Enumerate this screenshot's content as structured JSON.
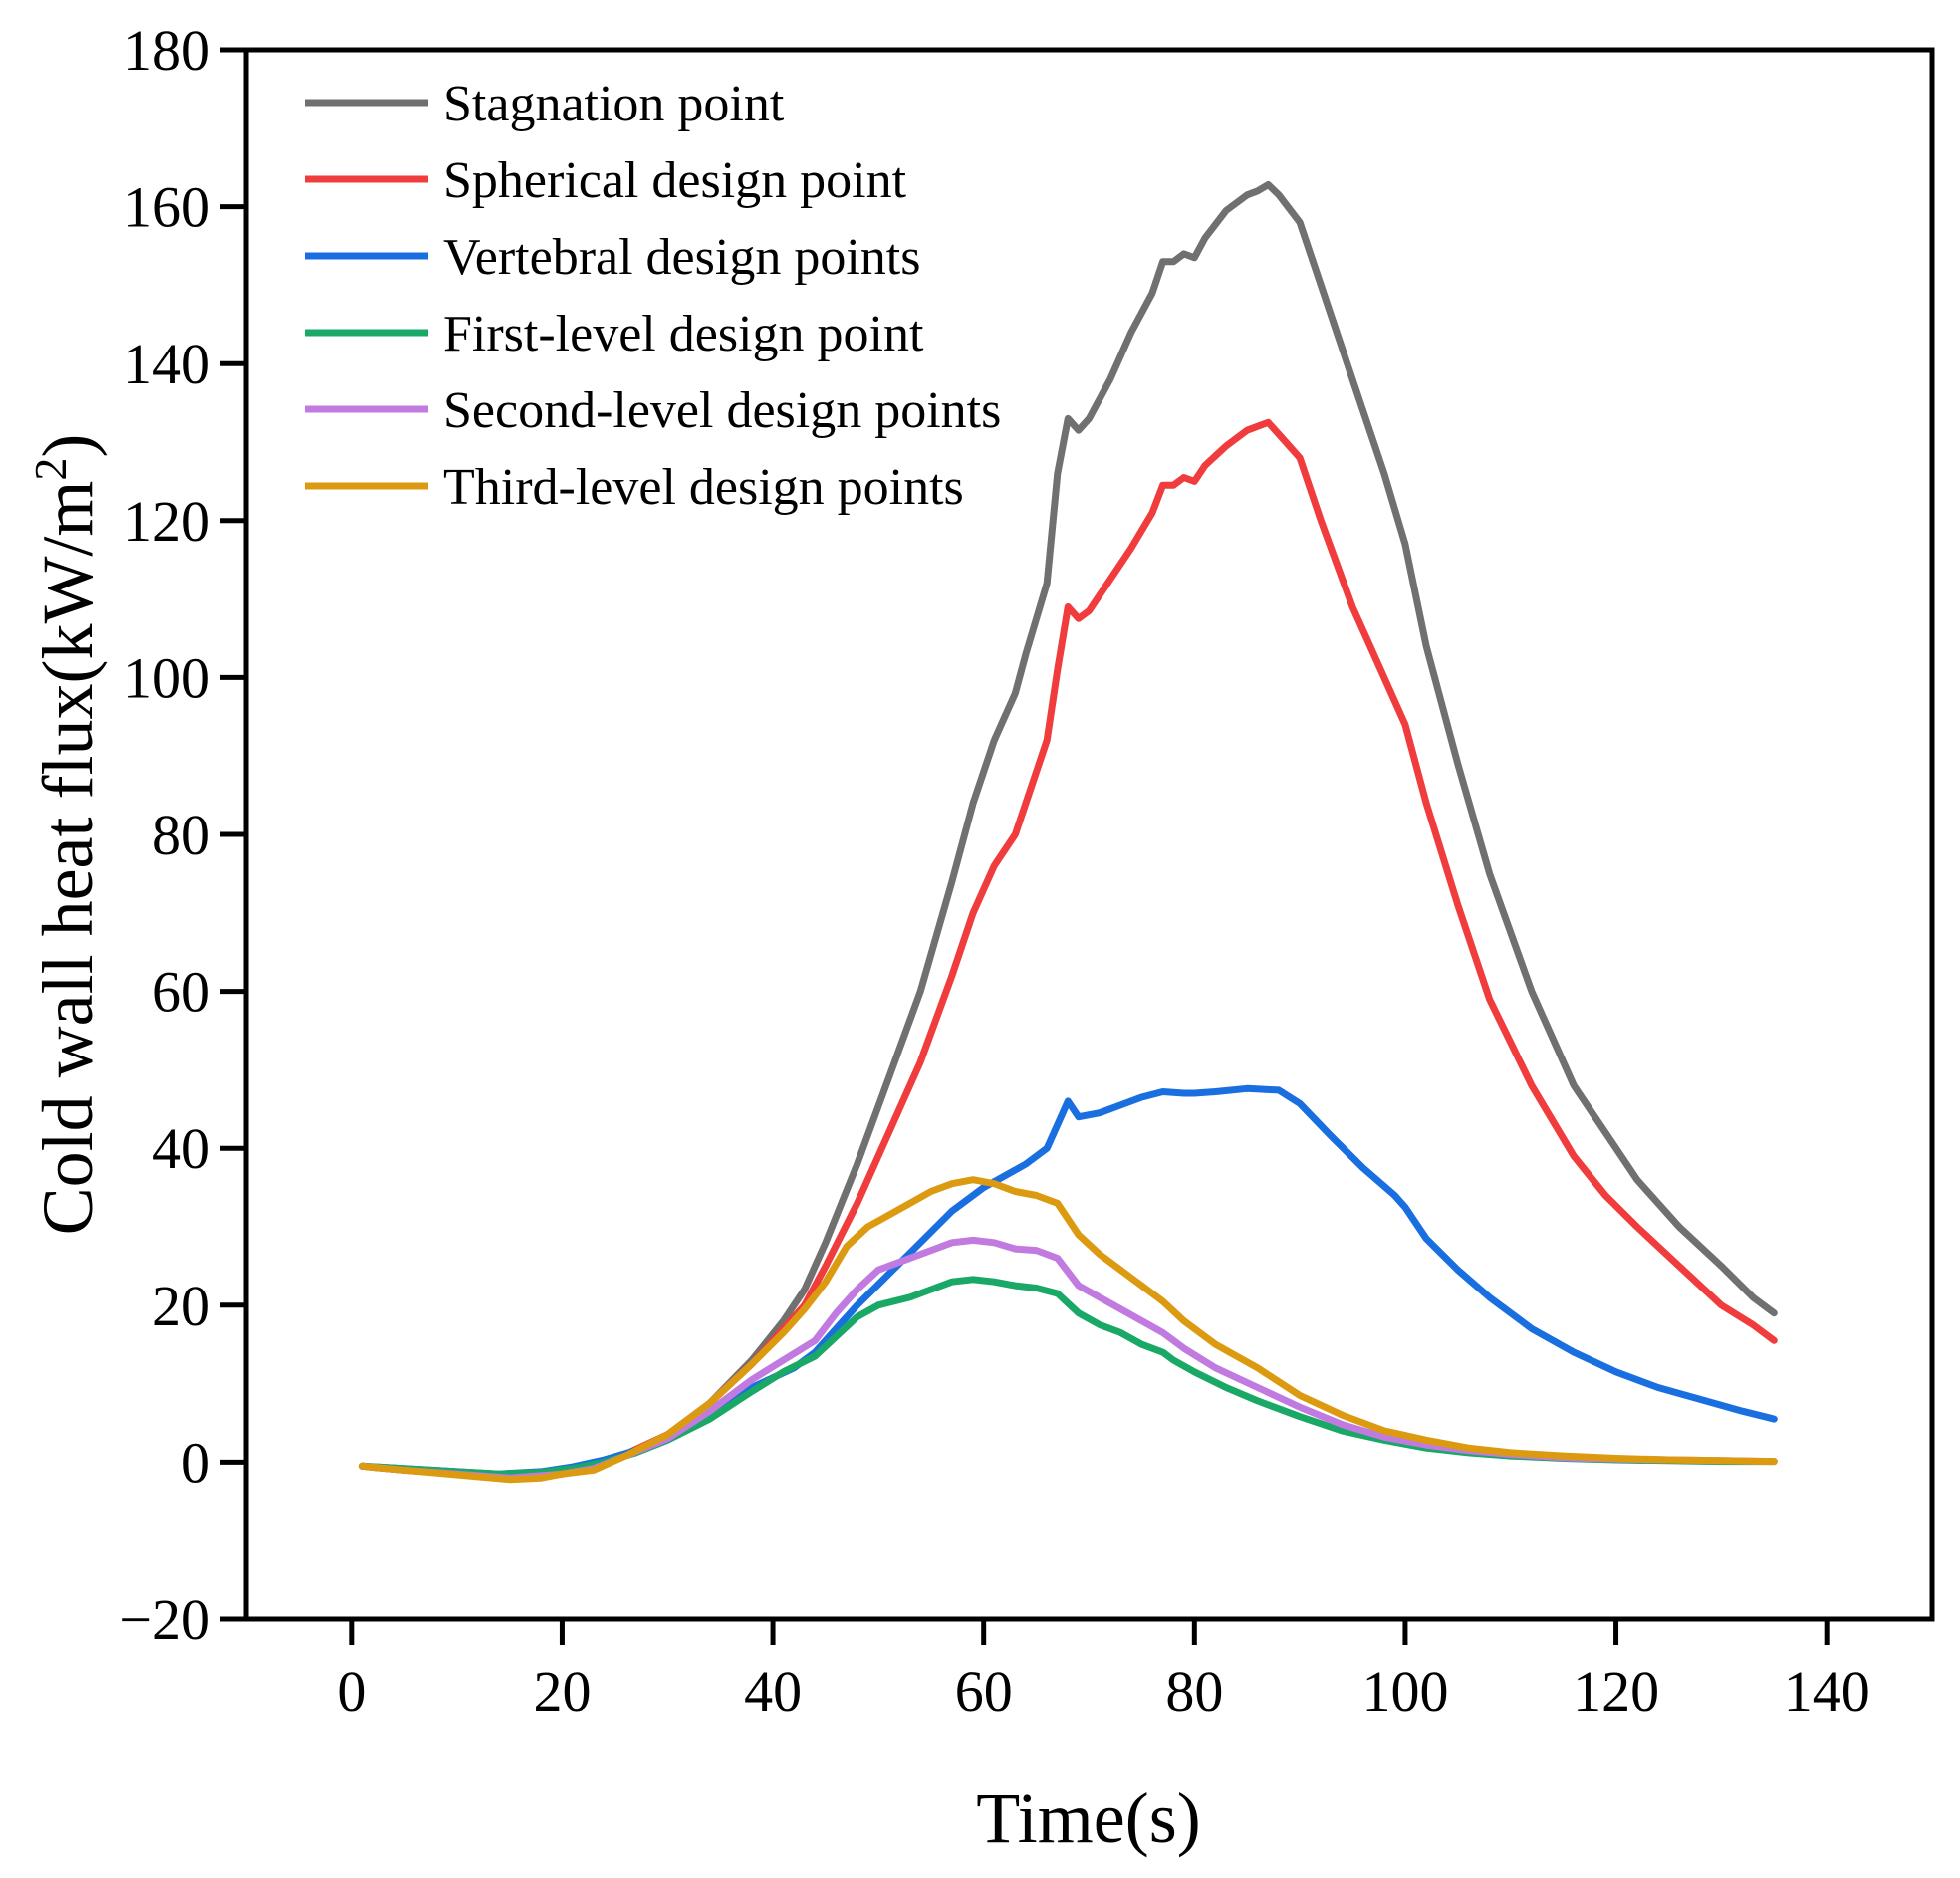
{
  "chart_data": {
    "type": "line",
    "title": "",
    "xlabel": "Time(s)",
    "ylabel": "Cold wall heat flux(kW/m",
    "ylabel_superscript": "2",
    "ylabel_close": ")",
    "xlim": [
      -10,
      150
    ],
    "ylim": [
      -20,
      180
    ],
    "xticks": [
      0,
      20,
      40,
      60,
      80,
      100,
      120,
      140
    ],
    "yticks": [
      -20,
      0,
      20,
      40,
      60,
      80,
      100,
      120,
      140,
      160,
      180
    ],
    "xtick_labels": [
      "0",
      "20",
      "40",
      "60",
      "80",
      "100",
      "120",
      "140"
    ],
    "ytick_labels": [
      "−20",
      "0",
      "20",
      "40",
      "60",
      "80",
      "100",
      "120",
      "140",
      "160",
      "180"
    ],
    "grid": false,
    "legend_position": "top-left",
    "series": [
      {
        "name": "Stagnation point",
        "color": "#707070",
        "points": [
          [
            1,
            -0.5
          ],
          [
            5,
            -1
          ],
          [
            10,
            -1.5
          ],
          [
            15,
            -2
          ],
          [
            20,
            -1.5
          ],
          [
            23,
            -0.5
          ],
          [
            26,
            1
          ],
          [
            30,
            3.5
          ],
          [
            34,
            7.5
          ],
          [
            38,
            13
          ],
          [
            41,
            18
          ],
          [
            43,
            22
          ],
          [
            45,
            28
          ],
          [
            48,
            38
          ],
          [
            51,
            49
          ],
          [
            54,
            60
          ],
          [
            57,
            74
          ],
          [
            59,
            84
          ],
          [
            61,
            92
          ],
          [
            63,
            98
          ],
          [
            64,
            103
          ],
          [
            66,
            112
          ],
          [
            67,
            126
          ],
          [
            68,
            133
          ],
          [
            69,
            131.5
          ],
          [
            70,
            133
          ],
          [
            72,
            138
          ],
          [
            74,
            144
          ],
          [
            76,
            149
          ],
          [
            77,
            153
          ],
          [
            78,
            153
          ],
          [
            79,
            154
          ],
          [
            80,
            153.5
          ],
          [
            81,
            156
          ],
          [
            83,
            159.5
          ],
          [
            85,
            161.5
          ],
          [
            86,
            162
          ],
          [
            87,
            162.8
          ],
          [
            88,
            161.5
          ],
          [
            90,
            158
          ],
          [
            92,
            150
          ],
          [
            95,
            138
          ],
          [
            98,
            126
          ],
          [
            100,
            117
          ],
          [
            102,
            104
          ],
          [
            105,
            89
          ],
          [
            108,
            75
          ],
          [
            112,
            60
          ],
          [
            116,
            48
          ],
          [
            119,
            42
          ],
          [
            122,
            36
          ],
          [
            126,
            30
          ],
          [
            130,
            25
          ],
          [
            133,
            21
          ],
          [
            135,
            19
          ]
        ]
      },
      {
        "name": "Spherical design point",
        "color": "#f03c3c",
        "points": [
          [
            1,
            -0.5
          ],
          [
            5,
            -1
          ],
          [
            10,
            -1.5
          ],
          [
            15,
            -2
          ],
          [
            20,
            -1.5
          ],
          [
            23,
            -0.5
          ],
          [
            26,
            1
          ],
          [
            30,
            3.5
          ],
          [
            34,
            7.5
          ],
          [
            38,
            12.5
          ],
          [
            41,
            17
          ],
          [
            43,
            20
          ],
          [
            45,
            25
          ],
          [
            48,
            33
          ],
          [
            51,
            42
          ],
          [
            54,
            51
          ],
          [
            57,
            62
          ],
          [
            59,
            70
          ],
          [
            61,
            76
          ],
          [
            63,
            80
          ],
          [
            64,
            84
          ],
          [
            66,
            92
          ],
          [
            67,
            101
          ],
          [
            68,
            109
          ],
          [
            69,
            107.5
          ],
          [
            70,
            108.5
          ],
          [
            72,
            112.5
          ],
          [
            74,
            116.5
          ],
          [
            76,
            121
          ],
          [
            77,
            124.5
          ],
          [
            78,
            124.5
          ],
          [
            79,
            125.5
          ],
          [
            80,
            125
          ],
          [
            81,
            127
          ],
          [
            83,
            129.5
          ],
          [
            85,
            131.5
          ],
          [
            86,
            132
          ],
          [
            87,
            132.5
          ],
          [
            88,
            131
          ],
          [
            90,
            128
          ],
          [
            92,
            120
          ],
          [
            95,
            109
          ],
          [
            98,
            100
          ],
          [
            100,
            94
          ],
          [
            102,
            84
          ],
          [
            105,
            71
          ],
          [
            108,
            59
          ],
          [
            112,
            48
          ],
          [
            116,
            39
          ],
          [
            119,
            34
          ],
          [
            122,
            30
          ],
          [
            126,
            25
          ],
          [
            130,
            20
          ],
          [
            133,
            17.5
          ],
          [
            135,
            15.5
          ]
        ]
      },
      {
        "name": "Vertebral design points",
        "color": "#1a6fe0",
        "points": [
          [
            1,
            -0.5
          ],
          [
            5,
            -0.8
          ],
          [
            10,
            -1.2
          ],
          [
            14,
            -1.5
          ],
          [
            18,
            -1.2
          ],
          [
            21,
            -0.6
          ],
          [
            24,
            0.3
          ],
          [
            27,
            1.5
          ],
          [
            30,
            3
          ],
          [
            34,
            6
          ],
          [
            38,
            9.5
          ],
          [
            42,
            12
          ],
          [
            44,
            14
          ],
          [
            46,
            17
          ],
          [
            48,
            20
          ],
          [
            51,
            24
          ],
          [
            54,
            28
          ],
          [
            57,
            32
          ],
          [
            60,
            35
          ],
          [
            62,
            36.5
          ],
          [
            64,
            38
          ],
          [
            66,
            40
          ],
          [
            67,
            43
          ],
          [
            68,
            46
          ],
          [
            69,
            44
          ],
          [
            71,
            44.5
          ],
          [
            73,
            45.5
          ],
          [
            75,
            46.5
          ],
          [
            77,
            47.2
          ],
          [
            79,
            47
          ],
          [
            80,
            47
          ],
          [
            82,
            47.2
          ],
          [
            85,
            47.6
          ],
          [
            88,
            47.4
          ],
          [
            90,
            45.7
          ],
          [
            93,
            41.5
          ],
          [
            96,
            37.5
          ],
          [
            99,
            34
          ],
          [
            100,
            32.5
          ],
          [
            102,
            28.5
          ],
          [
            105,
            24.5
          ],
          [
            108,
            21
          ],
          [
            112,
            17
          ],
          [
            116,
            14
          ],
          [
            120,
            11.5
          ],
          [
            124,
            9.5
          ],
          [
            128,
            8
          ],
          [
            132,
            6.5
          ],
          [
            135,
            5.5
          ]
        ]
      },
      {
        "name": "First-level design point",
        "color": "#1aa866",
        "points": [
          [
            1,
            -0.5
          ],
          [
            5,
            -0.8
          ],
          [
            10,
            -1.2
          ],
          [
            14,
            -1.5
          ],
          [
            18,
            -1.3
          ],
          [
            21,
            -0.8
          ],
          [
            24,
            0
          ],
          [
            27,
            1.2
          ],
          [
            30,
            2.8
          ],
          [
            34,
            5.5
          ],
          [
            38,
            9
          ],
          [
            41,
            11.5
          ],
          [
            44,
            13.5
          ],
          [
            46,
            16
          ],
          [
            48,
            18.5
          ],
          [
            50,
            20
          ],
          [
            53,
            21
          ],
          [
            55,
            22
          ],
          [
            57,
            23
          ],
          [
            59,
            23.3
          ],
          [
            61,
            23
          ],
          [
            63,
            22.5
          ],
          [
            65,
            22.2
          ],
          [
            67,
            21.5
          ],
          [
            69,
            19
          ],
          [
            71,
            17.5
          ],
          [
            73,
            16.5
          ],
          [
            75,
            15
          ],
          [
            77,
            14
          ],
          [
            78,
            13
          ],
          [
            80,
            11.5
          ],
          [
            83,
            9.5
          ],
          [
            86,
            7.8
          ],
          [
            90,
            5.8
          ],
          [
            94,
            4
          ],
          [
            98,
            2.8
          ],
          [
            102,
            1.8
          ],
          [
            106,
            1.2
          ],
          [
            110,
            0.8
          ],
          [
            115,
            0.5
          ],
          [
            120,
            0.3
          ],
          [
            125,
            0.2
          ],
          [
            130,
            0.1
          ],
          [
            135,
            0.1
          ]
        ]
      },
      {
        "name": "Second-level design points",
        "color": "#c07ae0",
        "points": [
          [
            1,
            -0.5
          ],
          [
            5,
            -1
          ],
          [
            10,
            -1.5
          ],
          [
            15,
            -2
          ],
          [
            20,
            -1.5
          ],
          [
            23,
            -0.8
          ],
          [
            26,
            0.8
          ],
          [
            30,
            3
          ],
          [
            34,
            6.5
          ],
          [
            38,
            10.5
          ],
          [
            41,
            13
          ],
          [
            44,
            15.5
          ],
          [
            46,
            19
          ],
          [
            48,
            22
          ],
          [
            50,
            24.5
          ],
          [
            53,
            26
          ],
          [
            55,
            27
          ],
          [
            57,
            28
          ],
          [
            59,
            28.3
          ],
          [
            61,
            28
          ],
          [
            63,
            27.2
          ],
          [
            65,
            27
          ],
          [
            67,
            26
          ],
          [
            69,
            22.5
          ],
          [
            71,
            21
          ],
          [
            73,
            19.5
          ],
          [
            75,
            18
          ],
          [
            77,
            16.5
          ],
          [
            79,
            14.5
          ],
          [
            82,
            12
          ],
          [
            86,
            9.5
          ],
          [
            90,
            7
          ],
          [
            94,
            4.8
          ],
          [
            98,
            3.2
          ],
          [
            102,
            2.2
          ],
          [
            106,
            1.5
          ],
          [
            110,
            1
          ],
          [
            115,
            0.6
          ],
          [
            120,
            0.4
          ],
          [
            125,
            0.3
          ],
          [
            130,
            0.2
          ],
          [
            135,
            0.1
          ]
        ]
      },
      {
        "name": "Third-level design points",
        "color": "#dc9a10",
        "points": [
          [
            1,
            -0.5
          ],
          [
            5,
            -1
          ],
          [
            10,
            -1.6
          ],
          [
            15,
            -2.2
          ],
          [
            18,
            -2
          ],
          [
            20,
            -1.5
          ],
          [
            23,
            -1
          ],
          [
            26,
            0.8
          ],
          [
            30,
            3.5
          ],
          [
            34,
            7.5
          ],
          [
            38,
            12.5
          ],
          [
            41,
            16.5
          ],
          [
            43,
            19.5
          ],
          [
            45,
            23
          ],
          [
            47,
            27.5
          ],
          [
            49,
            30
          ],
          [
            51,
            31.5
          ],
          [
            53,
            33
          ],
          [
            55,
            34.5
          ],
          [
            57,
            35.5
          ],
          [
            59,
            36
          ],
          [
            61,
            35.5
          ],
          [
            63,
            34.5
          ],
          [
            65,
            34
          ],
          [
            67,
            33
          ],
          [
            69,
            29
          ],
          [
            71,
            26.5
          ],
          [
            73,
            24.5
          ],
          [
            75,
            22.5
          ],
          [
            77,
            20.5
          ],
          [
            79,
            18
          ],
          [
            82,
            15
          ],
          [
            86,
            12
          ],
          [
            90,
            8.5
          ],
          [
            94,
            6
          ],
          [
            98,
            4
          ],
          [
            102,
            2.8
          ],
          [
            106,
            1.8
          ],
          [
            110,
            1.2
          ],
          [
            115,
            0.8
          ],
          [
            120,
            0.5
          ],
          [
            125,
            0.3
          ],
          [
            130,
            0.2
          ],
          [
            135,
            0.1
          ]
        ]
      }
    ]
  }
}
